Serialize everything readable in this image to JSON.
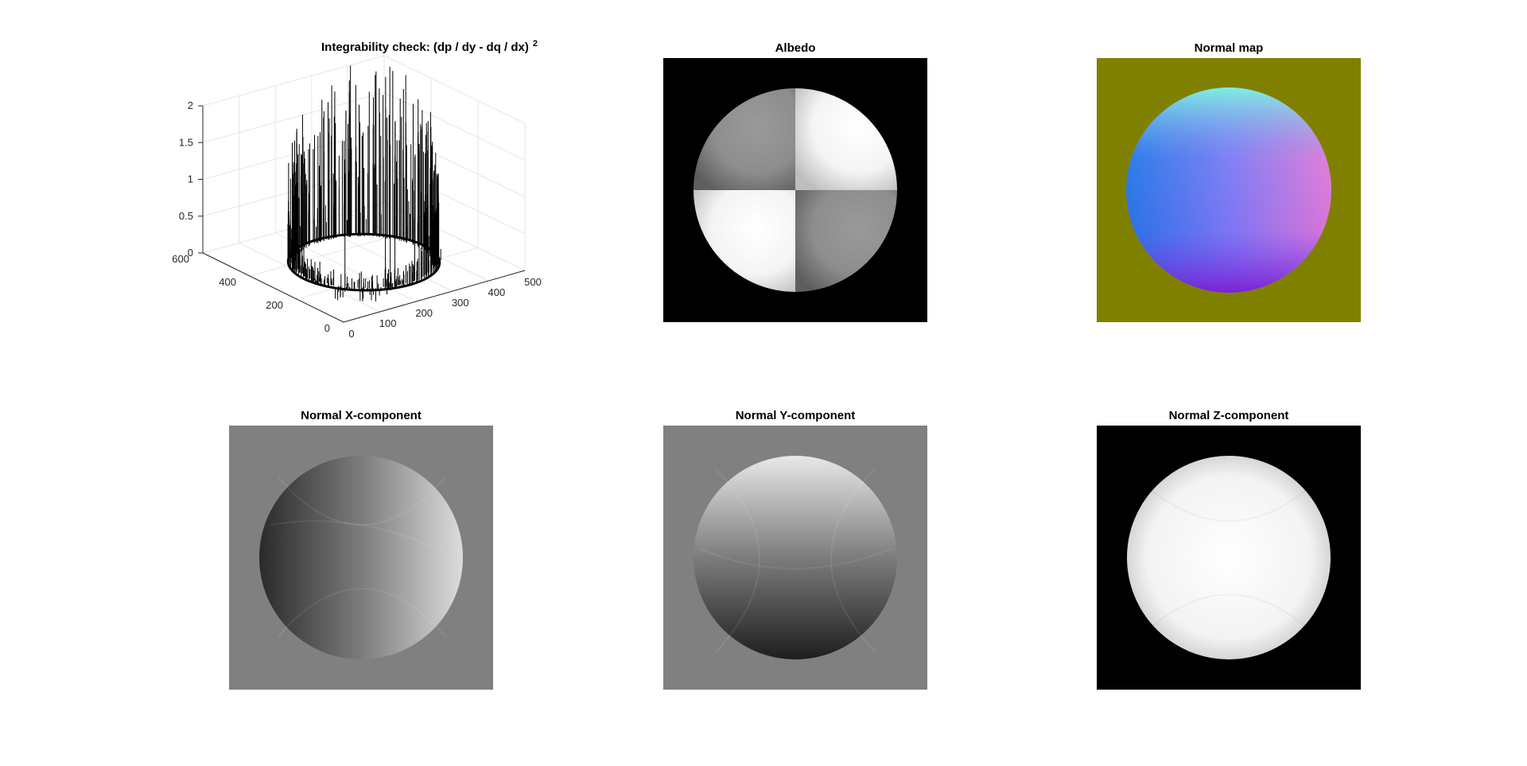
{
  "figure": {
    "background": "#ffffff",
    "panels": [
      {
        "id": "integrability",
        "title_text": "Integrability check: (dp / dy - dq / dx)",
        "title_sup": "2",
        "kind": "3d-surface"
      },
      {
        "id": "albedo",
        "title": "Albedo",
        "kind": "image",
        "icon": "albedo-image"
      },
      {
        "id": "normal-map",
        "title": "Normal map",
        "kind": "image",
        "icon": "normal-map-image"
      },
      {
        "id": "normal-x",
        "title": "Normal X-component",
        "kind": "image",
        "icon": "normal-x-image"
      },
      {
        "id": "normal-y",
        "title": "Normal Y-component",
        "kind": "image",
        "icon": "normal-y-image"
      },
      {
        "id": "normal-z",
        "title": "Normal Z-component",
        "kind": "image",
        "icon": "normal-z-image"
      }
    ]
  },
  "colors": {
    "normal_map_background": "#808000",
    "gray_background": "#808080",
    "black_background": "#000000",
    "sphere_cyan": "#7ff5e0",
    "sphere_blue": "#2a7fe0",
    "sphere_violet": "#7a2ad8",
    "sphere_pink": "#f07ad8"
  },
  "chart_data": [
    {
      "type": "3d-surface",
      "title": "Integrability check: (dp / dy - dq / dx) ²",
      "zlim": [
        0,
        2
      ],
      "z_ticks": [
        "0",
        "0.5",
        "1",
        "1.5",
        "2"
      ],
      "y_ticks": [
        "0",
        "200",
        "400",
        "600"
      ],
      "x_ticks": [
        "0",
        "100",
        "200",
        "300",
        "400",
        "500"
      ],
      "grid": true,
      "description_shape": "ring of spikes on a circle, peak values near 2"
    }
  ]
}
